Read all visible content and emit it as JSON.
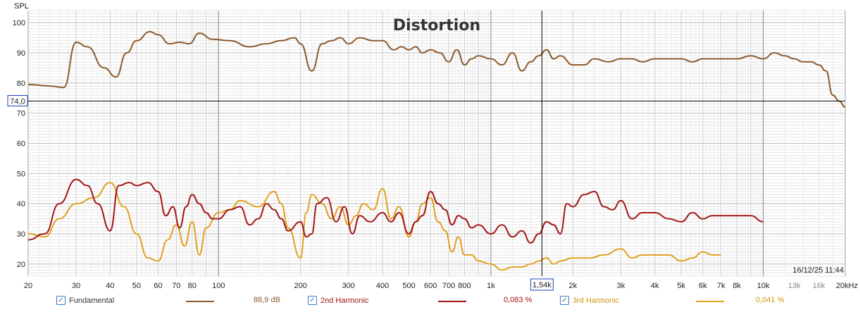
{
  "chart_data": {
    "type": "line",
    "title": "Distortion",
    "ylabel": "SPL",
    "x_scale": "log",
    "xlim": [
      20,
      20000
    ],
    "ylim": [
      16,
      104
    ],
    "y_ticks": [
      20,
      30,
      40,
      50,
      60,
      70,
      80,
      90,
      100
    ],
    "x_ticks": [
      {
        "f": 20,
        "label": "20"
      },
      {
        "f": 30,
        "label": "30"
      },
      {
        "f": 40,
        "label": "40"
      },
      {
        "f": 50,
        "label": "50"
      },
      {
        "f": 60,
        "label": "60"
      },
      {
        "f": 70,
        "label": "70"
      },
      {
        "f": 80,
        "label": "80"
      },
      {
        "f": 100,
        "label": "100"
      },
      {
        "f": 200,
        "label": "200"
      },
      {
        "f": 300,
        "label": "300"
      },
      {
        "f": 400,
        "label": "400"
      },
      {
        "f": 500,
        "label": "500"
      },
      {
        "f": 600,
        "label": "600"
      },
      {
        "f": 700,
        "label": "700"
      },
      {
        "f": 800,
        "label": "800"
      },
      {
        "f": 1000,
        "label": "1k"
      },
      {
        "f": 2000,
        "label": "2k"
      },
      {
        "f": 3000,
        "label": "3k"
      },
      {
        "f": 4000,
        "label": "4k"
      },
      {
        "f": 5000,
        "label": "5k"
      },
      {
        "f": 6000,
        "label": "6k"
      },
      {
        "f": 7000,
        "label": "7k"
      },
      {
        "f": 8000,
        "label": "8k"
      },
      {
        "f": 10000,
        "label": "10k"
      },
      {
        "f": 13000,
        "label": "13k",
        "muted": true
      },
      {
        "f": 16000,
        "label": "16k",
        "muted": true
      },
      {
        "f": 20000,
        "label": "20kHz"
      }
    ],
    "cursor": {
      "x": 1540,
      "y": 74,
      "x_label": "1,54k",
      "y_label": "74,0"
    },
    "timestamp": "16/12/25 11:44",
    "grid": true,
    "series": [
      {
        "name": "Fundamental",
        "color": "#8b5a2b",
        "legend_value": "88,9 dB",
        "x": [
          20,
          24,
          27,
          30,
          33,
          38,
          42,
          46,
          50,
          56,
          60,
          66,
          72,
          78,
          85,
          95,
          110,
          130,
          150,
          170,
          190,
          200,
          220,
          240,
          260,
          280,
          300,
          330,
          370,
          400,
          440,
          470,
          500,
          530,
          560,
          600,
          650,
          700,
          750,
          800,
          850,
          900,
          1000,
          1100,
          1200,
          1300,
          1400,
          1500,
          1600,
          1700,
          1800,
          2000,
          2200,
          2400,
          2700,
          3000,
          3300,
          3600,
          4000,
          4500,
          5000,
          5500,
          6000,
          7000,
          8000,
          9000,
          10000,
          11000,
          12000,
          13000,
          14000,
          15000,
          16000,
          17000,
          18000,
          19000,
          20000
        ],
        "y": [
          79.5,
          79,
          78.5,
          93.5,
          92,
          85,
          82,
          90,
          94,
          97,
          96,
          93,
          93.5,
          93,
          96.5,
          94.5,
          94,
          92,
          93,
          94,
          95,
          93,
          84,
          93,
          94,
          95,
          93,
          95,
          94,
          94,
          91,
          92,
          91,
          92,
          90,
          91,
          90,
          87,
          91,
          86,
          88,
          89,
          88,
          86,
          90,
          84,
          87,
          89,
          91,
          88,
          89,
          86,
          86,
          88,
          87,
          88,
          88,
          87,
          88,
          88,
          88,
          87,
          88,
          88,
          88,
          89,
          88,
          90,
          89,
          88,
          87,
          87,
          86,
          84,
          76,
          74,
          72
        ]
      },
      {
        "name": "2nd Harmonic",
        "color": "#a31515",
        "legend_value": "0,083 %",
        "x": [
          20,
          23,
          26,
          30,
          33,
          36,
          40,
          43,
          47,
          50,
          55,
          60,
          64,
          68,
          72,
          76,
          80,
          85,
          90,
          95,
          100,
          110,
          120,
          130,
          140,
          150,
          160,
          170,
          180,
          200,
          210,
          220,
          230,
          250,
          270,
          290,
          310,
          330,
          360,
          400,
          430,
          460,
          500,
          530,
          560,
          600,
          640,
          680,
          720,
          760,
          800,
          850,
          900,
          1000,
          1100,
          1200,
          1300,
          1400,
          1500,
          1600,
          1700,
          1800,
          1900,
          2000,
          2200,
          2400,
          2600,
          2800,
          3000,
          3300,
          3600,
          4000,
          4500,
          5000,
          5500,
          6000,
          6500,
          7000,
          8000,
          9000,
          10000
        ],
        "y": [
          28,
          30,
          40,
          48,
          46,
          40,
          31,
          46,
          47,
          46,
          47,
          44,
          36,
          39,
          32,
          39,
          43,
          40,
          37,
          35,
          35,
          38,
          39,
          33,
          35,
          40,
          38,
          35,
          31,
          34,
          29,
          30,
          40,
          42,
          34,
          39,
          30,
          36,
          34,
          37,
          34,
          37,
          30,
          34,
          36,
          44,
          40,
          38,
          33,
          36,
          35,
          32,
          33,
          30,
          33,
          29,
          31,
          27,
          30,
          34,
          33,
          30,
          40,
          39,
          43,
          44,
          39,
          38,
          41,
          35,
          37,
          37,
          35,
          34,
          37,
          35,
          36,
          36,
          36,
          36,
          34
        ]
      },
      {
        "name": "3rd Harmonic",
        "color": "#e0a020",
        "legend_value": "0,041 %",
        "x": [
          20,
          23,
          26,
          30,
          35,
          40,
          45,
          50,
          55,
          60,
          65,
          70,
          75,
          80,
          85,
          90,
          100,
          110,
          120,
          140,
          160,
          170,
          180,
          200,
          210,
          220,
          240,
          260,
          280,
          300,
          320,
          340,
          370,
          400,
          430,
          460,
          500,
          530,
          560,
          600,
          640,
          680,
          720,
          760,
          800,
          850,
          900,
          1000,
          1100,
          1200,
          1300,
          1400,
          1500,
          1600,
          1700,
          1800,
          2000,
          2300,
          2600,
          3000,
          3300,
          3600,
          4000,
          4500,
          5000,
          5500,
          6000,
          6500,
          7000
        ],
        "y": [
          30,
          29,
          35,
          40,
          42,
          47,
          39,
          30,
          22,
          21,
          28,
          33,
          26,
          34,
          23,
          32,
          37,
          38,
          41,
          39,
          44,
          40,
          32,
          22,
          37,
          43,
          40,
          35,
          39,
          33,
          36,
          40,
          38,
          45,
          35,
          39,
          29,
          34,
          40,
          42,
          34,
          31,
          24,
          29,
          23,
          23,
          21,
          20,
          18,
          19,
          19,
          20,
          21,
          22,
          20,
          21,
          22,
          22,
          23,
          25,
          22,
          23,
          23,
          23,
          21,
          22,
          24,
          23,
          23
        ]
      }
    ]
  }
}
